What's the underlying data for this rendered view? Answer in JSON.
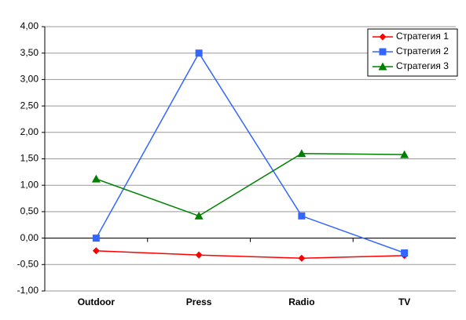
{
  "chart_data": {
    "type": "line",
    "categories": [
      "Outdoor",
      "Press",
      "Radio",
      "TV"
    ],
    "series": [
      {
        "name": "Стратегия 1",
        "color": "#ff0000",
        "marker": "diamond",
        "values": [
          -0.24,
          -0.32,
          -0.38,
          -0.33
        ]
      },
      {
        "name": "Стратегия 2",
        "color": "#3366ff",
        "marker": "square",
        "values": [
          0.0,
          3.5,
          0.42,
          -0.28
        ]
      },
      {
        "name": "Стратегия 3",
        "color": "#008000",
        "marker": "triangle",
        "values": [
          1.12,
          0.42,
          1.6,
          1.58
        ]
      }
    ],
    "ylim": [
      -1,
      4
    ],
    "yticks": [
      {
        "value": -1,
        "label": "-1,00"
      },
      {
        "value": -0.5,
        "label": "-0,50"
      },
      {
        "value": 0,
        "label": "0,00"
      },
      {
        "value": 0.5,
        "label": "0,50"
      },
      {
        "value": 1,
        "label": "1,00"
      },
      {
        "value": 1.5,
        "label": "1,50"
      },
      {
        "value": 2,
        "label": "2,00"
      },
      {
        "value": 2.5,
        "label": "2,50"
      },
      {
        "value": 3,
        "label": "3,00"
      },
      {
        "value": 3.5,
        "label": "3,50"
      },
      {
        "value": 4,
        "label": "4,00"
      }
    ],
    "grid": true,
    "legend": "top-right"
  }
}
